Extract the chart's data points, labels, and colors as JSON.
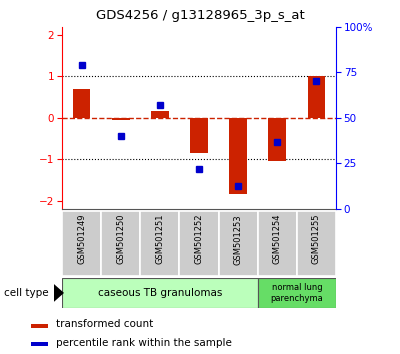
{
  "title": "GDS4256 / g13128965_3p_s_at",
  "samples": [
    "GSM501249",
    "GSM501250",
    "GSM501251",
    "GSM501252",
    "GSM501253",
    "GSM501254",
    "GSM501255"
  ],
  "transformed_count": [
    0.7,
    -0.05,
    0.15,
    -0.85,
    -1.85,
    -1.05,
    1.0
  ],
  "percentile_rank_scaled": [
    1.28,
    -0.44,
    0.3,
    -1.25,
    -1.65,
    -0.58,
    0.88
  ],
  "ylim": [
    -2.2,
    2.2
  ],
  "yticks_left": [
    -2,
    -1,
    0,
    1,
    2
  ],
  "yticks_right_pct": [
    0,
    25,
    50,
    75,
    100
  ],
  "bar_color": "#cc2200",
  "dot_color": "#0000cc",
  "hline_color": "#cc2200",
  "group1_label": "caseous TB granulomas",
  "group2_label": "normal lung\nparenchyma",
  "cell_type_label": "cell type",
  "legend_bar_label": "transformed count",
  "legend_dot_label": "percentile rank within the sample",
  "bg_color_group1": "#bbffbb",
  "bg_color_group2": "#66dd66",
  "tick_bg": "#cccccc",
  "border_color": "#555555"
}
